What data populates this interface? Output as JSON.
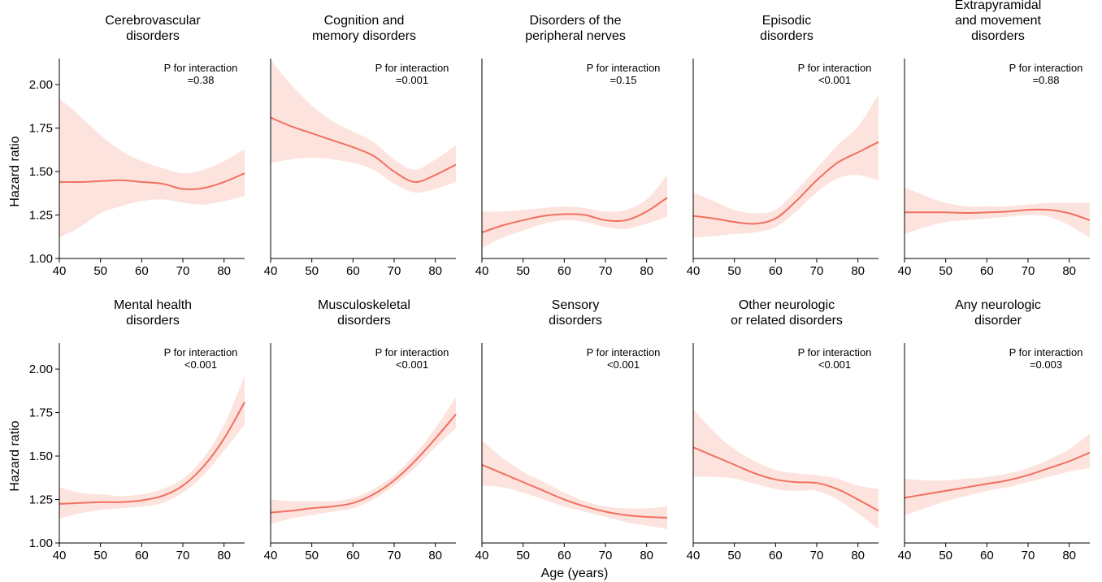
{
  "x_axis_label": "Age (years)",
  "y_axis_label": "Hazard ratio",
  "colors": {
    "line": "#f07060",
    "band": "#fde3de",
    "axis": "#000000"
  },
  "chart_data": [
    {
      "type": "line",
      "title": [
        "Cerebrovascular",
        "disorders"
      ],
      "annotation": [
        "P for interaction",
        "=0.38"
      ],
      "x": [
        40,
        45,
        50,
        55,
        60,
        65,
        70,
        75,
        80,
        85
      ],
      "y": [
        1.44,
        1.44,
        1.445,
        1.45,
        1.44,
        1.43,
        1.4,
        1.405,
        1.44,
        1.49
      ],
      "lower": [
        1.12,
        1.18,
        1.26,
        1.3,
        1.33,
        1.34,
        1.32,
        1.31,
        1.33,
        1.36
      ],
      "upper": [
        1.92,
        1.82,
        1.71,
        1.62,
        1.56,
        1.52,
        1.49,
        1.51,
        1.56,
        1.63
      ],
      "xlim": [
        40,
        85
      ],
      "ylim": [
        1.0,
        2.15
      ],
      "xticks": [
        40,
        50,
        60,
        70,
        80
      ],
      "yticks": [
        "1.00",
        "1.25",
        "1.50",
        "1.75",
        "2.00"
      ]
    },
    {
      "type": "line",
      "title": [
        "Cognition and",
        "memory disorders"
      ],
      "annotation": [
        "P for interaction",
        "=0.001"
      ],
      "x": [
        40,
        45,
        50,
        55,
        60,
        65,
        70,
        75,
        80,
        85
      ],
      "y": [
        1.81,
        1.76,
        1.72,
        1.68,
        1.64,
        1.59,
        1.5,
        1.44,
        1.48,
        1.54
      ],
      "lower": [
        1.55,
        1.57,
        1.58,
        1.57,
        1.55,
        1.51,
        1.43,
        1.38,
        1.4,
        1.44
      ],
      "upper": [
        2.14,
        2.0,
        1.88,
        1.79,
        1.73,
        1.67,
        1.57,
        1.51,
        1.57,
        1.65
      ],
      "xlim": [
        40,
        85
      ],
      "ylim": [
        1.0,
        2.15
      ],
      "xticks": [
        40,
        50,
        60,
        70,
        80
      ],
      "yticks": []
    },
    {
      "type": "line",
      "title": [
        "Disorders of the",
        "peripheral nerves"
      ],
      "annotation": [
        "P for interaction",
        "=0.15"
      ],
      "x": [
        40,
        45,
        50,
        55,
        60,
        65,
        70,
        75,
        80,
        85
      ],
      "y": [
        1.15,
        1.19,
        1.22,
        1.245,
        1.255,
        1.25,
        1.22,
        1.22,
        1.27,
        1.35
      ],
      "lower": [
        1.06,
        1.12,
        1.16,
        1.2,
        1.22,
        1.21,
        1.18,
        1.17,
        1.2,
        1.24
      ],
      "upper": [
        1.27,
        1.27,
        1.28,
        1.29,
        1.3,
        1.29,
        1.27,
        1.28,
        1.34,
        1.48
      ],
      "xlim": [
        40,
        85
      ],
      "ylim": [
        1.0,
        2.15
      ],
      "xticks": [
        40,
        50,
        60,
        70,
        80
      ],
      "yticks": []
    },
    {
      "type": "line",
      "title": [
        "Episodic",
        "disorders"
      ],
      "annotation": [
        "P for interaction",
        "<0.001"
      ],
      "x": [
        40,
        45,
        50,
        55,
        60,
        65,
        70,
        75,
        80,
        85
      ],
      "y": [
        1.245,
        1.23,
        1.21,
        1.2,
        1.23,
        1.33,
        1.45,
        1.55,
        1.61,
        1.67
      ],
      "lower": [
        1.12,
        1.13,
        1.14,
        1.15,
        1.18,
        1.27,
        1.38,
        1.46,
        1.48,
        1.45
      ],
      "upper": [
        1.38,
        1.33,
        1.28,
        1.26,
        1.28,
        1.39,
        1.52,
        1.65,
        1.76,
        1.94
      ],
      "xlim": [
        40,
        85
      ],
      "ylim": [
        1.0,
        2.15
      ],
      "xticks": [
        40,
        50,
        60,
        70,
        80
      ],
      "yticks": []
    },
    {
      "type": "line",
      "title": [
        "Extrapyramidal",
        "and movement",
        "disorders"
      ],
      "annotation": [
        "P for interaction",
        "=0.88"
      ],
      "x": [
        40,
        45,
        50,
        55,
        60,
        65,
        70,
        75,
        80,
        85
      ],
      "y": [
        1.265,
        1.265,
        1.265,
        1.262,
        1.265,
        1.27,
        1.28,
        1.28,
        1.26,
        1.22
      ],
      "lower": [
        1.14,
        1.18,
        1.21,
        1.22,
        1.23,
        1.24,
        1.25,
        1.24,
        1.19,
        1.12
      ],
      "upper": [
        1.41,
        1.36,
        1.32,
        1.3,
        1.3,
        1.3,
        1.31,
        1.32,
        1.32,
        1.32
      ],
      "xlim": [
        40,
        85
      ],
      "ylim": [
        1.0,
        2.15
      ],
      "xticks": [
        40,
        50,
        60,
        70,
        80
      ],
      "yticks": []
    },
    {
      "type": "line",
      "title": [
        "Mental health",
        "disorders"
      ],
      "annotation": [
        "P for interaction",
        "<0.001"
      ],
      "x": [
        40,
        45,
        50,
        55,
        60,
        65,
        70,
        75,
        80,
        85
      ],
      "y": [
        1.225,
        1.23,
        1.235,
        1.235,
        1.245,
        1.27,
        1.33,
        1.44,
        1.6,
        1.81
      ],
      "lower": [
        1.14,
        1.17,
        1.19,
        1.2,
        1.21,
        1.23,
        1.29,
        1.39,
        1.53,
        1.68
      ],
      "upper": [
        1.32,
        1.29,
        1.28,
        1.27,
        1.28,
        1.31,
        1.37,
        1.49,
        1.68,
        1.96
      ],
      "xlim": [
        40,
        85
      ],
      "ylim": [
        1.0,
        2.15
      ],
      "xticks": [
        40,
        50,
        60,
        70,
        80
      ],
      "yticks": [
        "1.00",
        "1.25",
        "1.50",
        "1.75",
        "2.00"
      ]
    },
    {
      "type": "line",
      "title": [
        "Musculoskeletal",
        "disorders"
      ],
      "annotation": [
        "P for interaction",
        "<0.001"
      ],
      "x": [
        40,
        45,
        50,
        55,
        60,
        65,
        70,
        75,
        80,
        85
      ],
      "y": [
        1.175,
        1.185,
        1.2,
        1.21,
        1.23,
        1.28,
        1.36,
        1.47,
        1.6,
        1.74
      ],
      "lower": [
        1.11,
        1.14,
        1.16,
        1.18,
        1.2,
        1.25,
        1.33,
        1.43,
        1.55,
        1.66
      ],
      "upper": [
        1.25,
        1.24,
        1.24,
        1.24,
        1.26,
        1.31,
        1.39,
        1.51,
        1.66,
        1.84
      ],
      "xlim": [
        40,
        85
      ],
      "ylim": [
        1.0,
        2.15
      ],
      "xticks": [
        40,
        50,
        60,
        70,
        80
      ],
      "yticks": []
    },
    {
      "type": "line",
      "title": [
        "Sensory",
        "disorders"
      ],
      "annotation": [
        "P for interaction",
        "<0.001"
      ],
      "x": [
        40,
        45,
        50,
        55,
        60,
        65,
        70,
        75,
        80,
        85
      ],
      "y": [
        1.45,
        1.4,
        1.35,
        1.3,
        1.25,
        1.21,
        1.18,
        1.16,
        1.15,
        1.145
      ],
      "lower": [
        1.33,
        1.32,
        1.29,
        1.25,
        1.21,
        1.18,
        1.15,
        1.12,
        1.1,
        1.08
      ],
      "upper": [
        1.59,
        1.49,
        1.41,
        1.35,
        1.29,
        1.24,
        1.21,
        1.2,
        1.2,
        1.21
      ],
      "xlim": [
        40,
        85
      ],
      "ylim": [
        1.0,
        2.15
      ],
      "xticks": [
        40,
        50,
        60,
        70,
        80
      ],
      "yticks": []
    },
    {
      "type": "line",
      "title": [
        "Other neurologic",
        "or related disorders"
      ],
      "annotation": [
        "P for interaction",
        "<0.001"
      ],
      "x": [
        40,
        45,
        50,
        55,
        60,
        65,
        70,
        75,
        80,
        85
      ],
      "y": [
        1.55,
        1.5,
        1.45,
        1.4,
        1.365,
        1.35,
        1.345,
        1.31,
        1.25,
        1.185
      ],
      "lower": [
        1.38,
        1.38,
        1.37,
        1.34,
        1.31,
        1.3,
        1.3,
        1.25,
        1.17,
        1.08
      ],
      "upper": [
        1.77,
        1.64,
        1.54,
        1.47,
        1.42,
        1.4,
        1.39,
        1.37,
        1.33,
        1.31
      ],
      "xlim": [
        40,
        85
      ],
      "ylim": [
        1.0,
        2.15
      ],
      "xticks": [
        40,
        50,
        60,
        70,
        80
      ],
      "yticks": []
    },
    {
      "type": "line",
      "title": [
        "Any neurologic",
        "disorder"
      ],
      "annotation": [
        "P for interaction",
        "=0.003"
      ],
      "x": [
        40,
        45,
        50,
        55,
        60,
        65,
        70,
        75,
        80,
        85
      ],
      "y": [
        1.26,
        1.28,
        1.3,
        1.32,
        1.34,
        1.36,
        1.39,
        1.43,
        1.47,
        1.52
      ],
      "lower": [
        1.16,
        1.2,
        1.24,
        1.27,
        1.3,
        1.32,
        1.35,
        1.38,
        1.41,
        1.43
      ],
      "upper": [
        1.37,
        1.36,
        1.36,
        1.37,
        1.38,
        1.4,
        1.43,
        1.48,
        1.54,
        1.63
      ],
      "xlim": [
        40,
        85
      ],
      "ylim": [
        1.0,
        2.15
      ],
      "xticks": [
        40,
        50,
        60,
        70,
        80
      ],
      "yticks": []
    }
  ]
}
